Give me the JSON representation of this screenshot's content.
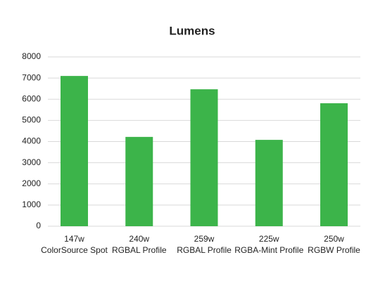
{
  "chart_data": {
    "type": "bar",
    "title": "Lumens",
    "categories": [
      [
        "147w",
        "ColorSource Spot"
      ],
      [
        "240w",
        "RGBAL Profile"
      ],
      [
        "259w",
        "RGBAL Profile"
      ],
      [
        "225w",
        "RGBA-Mint Profile"
      ],
      [
        "250w",
        "RGBW Profile"
      ]
    ],
    "values": [
      7100,
      4220,
      6470,
      4080,
      5810
    ],
    "color": "#3cb44a",
    "ylim": [
      0,
      8000
    ],
    "yticks": [
      0,
      1000,
      2000,
      3000,
      4000,
      5000,
      6000,
      7000,
      8000
    ],
    "grid": true
  }
}
